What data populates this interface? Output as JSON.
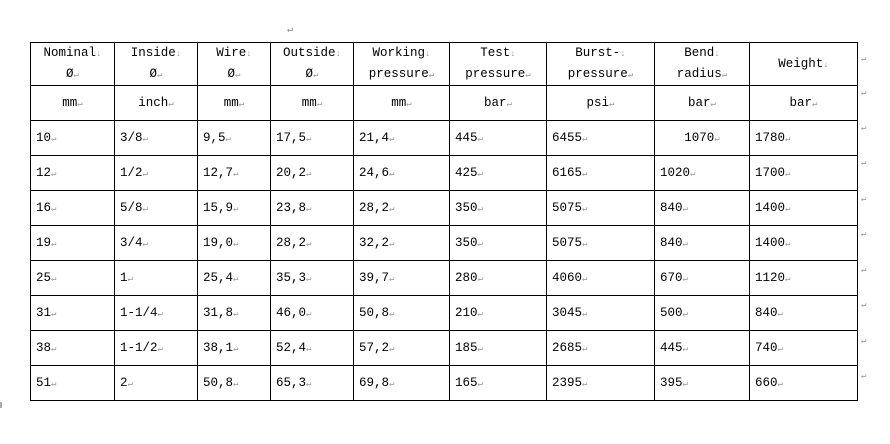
{
  "columns": [
    {
      "line1": "Nominal",
      "line2": "Ø",
      "unit": "mm"
    },
    {
      "line1": "Inside",
      "line2": "Ø",
      "unit": "inch"
    },
    {
      "line1": "Wire",
      "line2": "Ø",
      "unit": "mm"
    },
    {
      "line1": "Outside",
      "line2": "Ø",
      "unit": "mm"
    },
    {
      "line1": "Working",
      "line2": "pressure",
      "unit": "mm"
    },
    {
      "line1": "Test",
      "line2": "pressure",
      "unit": "bar"
    },
    {
      "line1": "Burst-",
      "line2": "pressure",
      "unit": "psi"
    },
    {
      "line1": "Bend",
      "line2": "radius",
      "unit": "bar"
    },
    {
      "line1": "Weight",
      "line2": "",
      "unit": "bar"
    }
  ],
  "rows": [
    [
      "10",
      "3/8",
      "9,5",
      "17,5",
      "21,4",
      "445",
      "6455",
      "1070",
      "1780"
    ],
    [
      "12",
      "1/2",
      "12,7",
      "20,2",
      "24,6",
      "425",
      "6165",
      "1020",
      "1700"
    ],
    [
      "16",
      "5/8",
      "15,9",
      "23,8",
      "28,2",
      "350",
      "5075",
      "840",
      "1400"
    ],
    [
      "19",
      "3/4",
      "19,0",
      "28,2",
      "32,2",
      "350",
      "5075",
      "840",
      "1400"
    ],
    [
      "25",
      "1",
      "25,4",
      "35,3",
      "39,7",
      "280",
      "4060",
      "670",
      "1120"
    ],
    [
      "31",
      "1-1/4",
      "31,8",
      "46,0",
      "50,8",
      "210",
      "3045",
      "500",
      "840"
    ],
    [
      "38",
      "1-1/2",
      "38,1",
      "52,4",
      "57,2",
      "185",
      "2685",
      "445",
      "740"
    ],
    [
      "51",
      "2",
      "50,8",
      "65,3",
      "69,8",
      "165",
      "2395",
      "395",
      "660"
    ]
  ]
}
